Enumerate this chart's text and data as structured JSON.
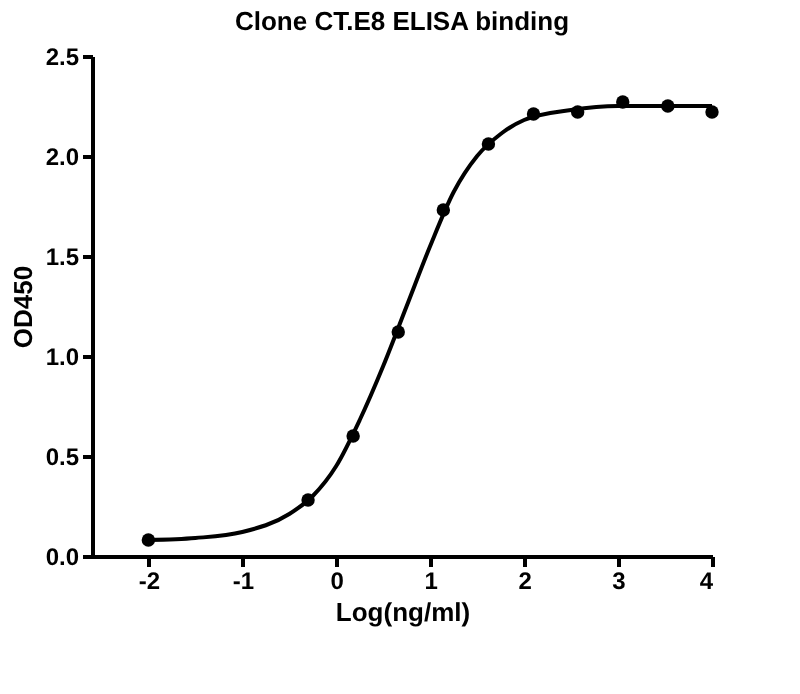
{
  "chart_data": {
    "type": "scatter",
    "title": "Clone CT.E8 ELISA binding",
    "xlabel": "Log(ng/ml)",
    "ylabel": "OD450",
    "xlim": [
      -2.6,
      4
    ],
    "xticks": [
      -2,
      -1,
      0,
      1,
      2,
      3,
      4
    ],
    "ylim": [
      0,
      2.5
    ],
    "yticks": [
      {
        "value": 0,
        "label": "0.0"
      },
      0.5,
      {
        "value": 1,
        "label": "1.0"
      },
      1.5,
      {
        "value": 2,
        "label": "2.0"
      },
      2.5
    ],
    "grid": false,
    "series": [
      {
        "marker": "circle",
        "color": "#000000",
        "x": [
          -2,
          -0.3,
          0.18,
          0.66,
          1.14,
          1.62,
          2.1,
          2.57,
          3.05,
          3.53,
          4.0
        ],
        "values": [
          0.08,
          0.28,
          0.6,
          1.12,
          1.73,
          2.06,
          2.21,
          2.22,
          2.27,
          2.25,
          2.22
        ]
      },
      {
        "type": "line",
        "marker": "none",
        "line_style": "solid",
        "color": "#000000",
        "x": [
          -2,
          -1.5,
          -1,
          -0.5,
          -0.25,
          0,
          0.25,
          0.5,
          0.75,
          1,
          1.25,
          1.5,
          1.75,
          2,
          2.5,
          3,
          4
        ],
        "values": [
          0.08,
          0.09,
          0.12,
          0.21,
          0.3,
          0.45,
          0.68,
          0.95,
          1.25,
          1.55,
          1.82,
          2.0,
          2.11,
          2.18,
          2.23,
          2.25,
          2.25
        ]
      }
    ]
  }
}
